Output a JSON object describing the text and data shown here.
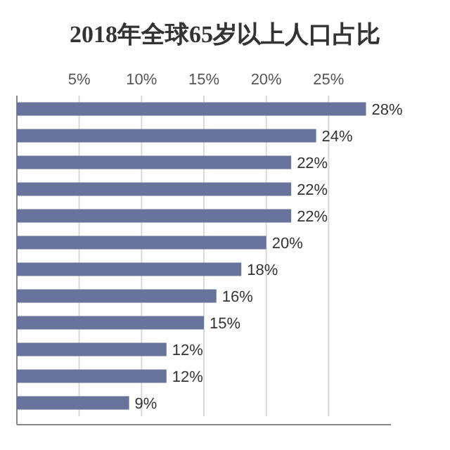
{
  "chart_data": {
    "type": "bar",
    "orientation": "horizontal",
    "title": "2018年全球65岁以上人口占比",
    "categories": [
      null,
      null,
      null,
      null,
      null,
      null,
      null,
      null,
      null,
      null,
      null,
      null
    ],
    "values": [
      28,
      24,
      22,
      22,
      22,
      20,
      18,
      16,
      15,
      12,
      12,
      9
    ],
    "value_labels": [
      "28%",
      "24%",
      "22%",
      "22%",
      "22%",
      "20%",
      "18%",
      "16%",
      "15%",
      "12%",
      "12%",
      "9%"
    ],
    "color": "#67739b",
    "xlim": [
      0,
      30
    ],
    "xticks": [
      {
        "value": 5,
        "label": "5%"
      },
      {
        "value": 10,
        "label": "10%"
      },
      {
        "value": 15,
        "label": "15%"
      },
      {
        "value": 20,
        "label": "20%"
      },
      {
        "value": 25,
        "label": "25%"
      }
    ],
    "grid": "x"
  }
}
